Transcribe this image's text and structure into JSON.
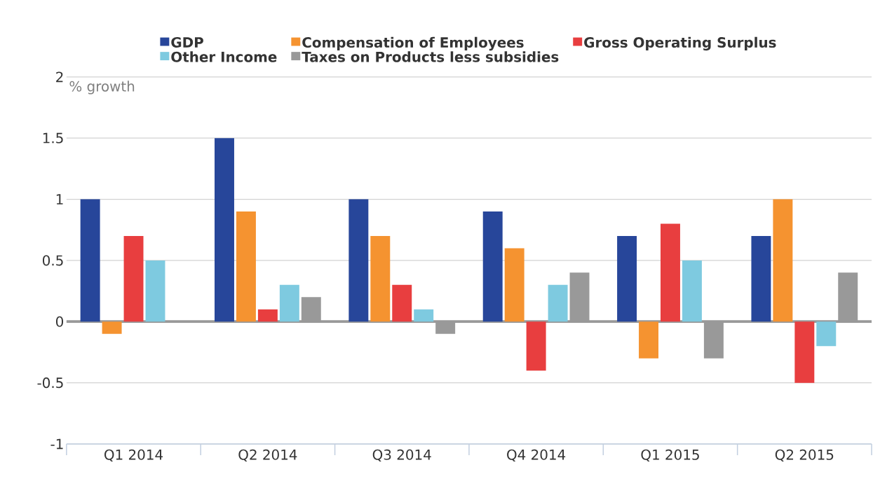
{
  "chart_data": {
    "type": "bar",
    "ylabel": "% growth",
    "categories": [
      "Q1 2014",
      "Q2 2014",
      "Q3 2014",
      "Q4 2014",
      "Q1 2015",
      "Q2 2015"
    ],
    "series": [
      {
        "name": "GDP",
        "color": "#27469a",
        "values": [
          1.0,
          1.5,
          1.0,
          0.9,
          0.7,
          0.7
        ]
      },
      {
        "name": "Compensation of Employees",
        "color": "#f59330",
        "values": [
          -0.1,
          0.9,
          0.7,
          0.6,
          -0.3,
          1.0
        ]
      },
      {
        "name": "Gross Operating Surplus",
        "color": "#e83e3f",
        "values": [
          0.7,
          0.1,
          0.3,
          -0.4,
          0.8,
          -0.5
        ]
      },
      {
        "name": "Other Income",
        "color": "#7ecae0",
        "values": [
          0.5,
          0.3,
          0.1,
          0.3,
          0.5,
          -0.2
        ]
      },
      {
        "name": "Taxes on Products less subsidies",
        "color": "#999999",
        "values": [
          0.0,
          0.2,
          -0.1,
          0.4,
          -0.3,
          0.4
        ]
      }
    ],
    "ylim": [
      -1,
      2
    ],
    "yticks": [
      -1,
      -0.5,
      0,
      0.5,
      1,
      1.5,
      2
    ],
    "ref_lines": [
      {
        "axis": "y",
        "value": 0,
        "color": "#999999"
      }
    ],
    "grid": "y",
    "legend": "top"
  }
}
